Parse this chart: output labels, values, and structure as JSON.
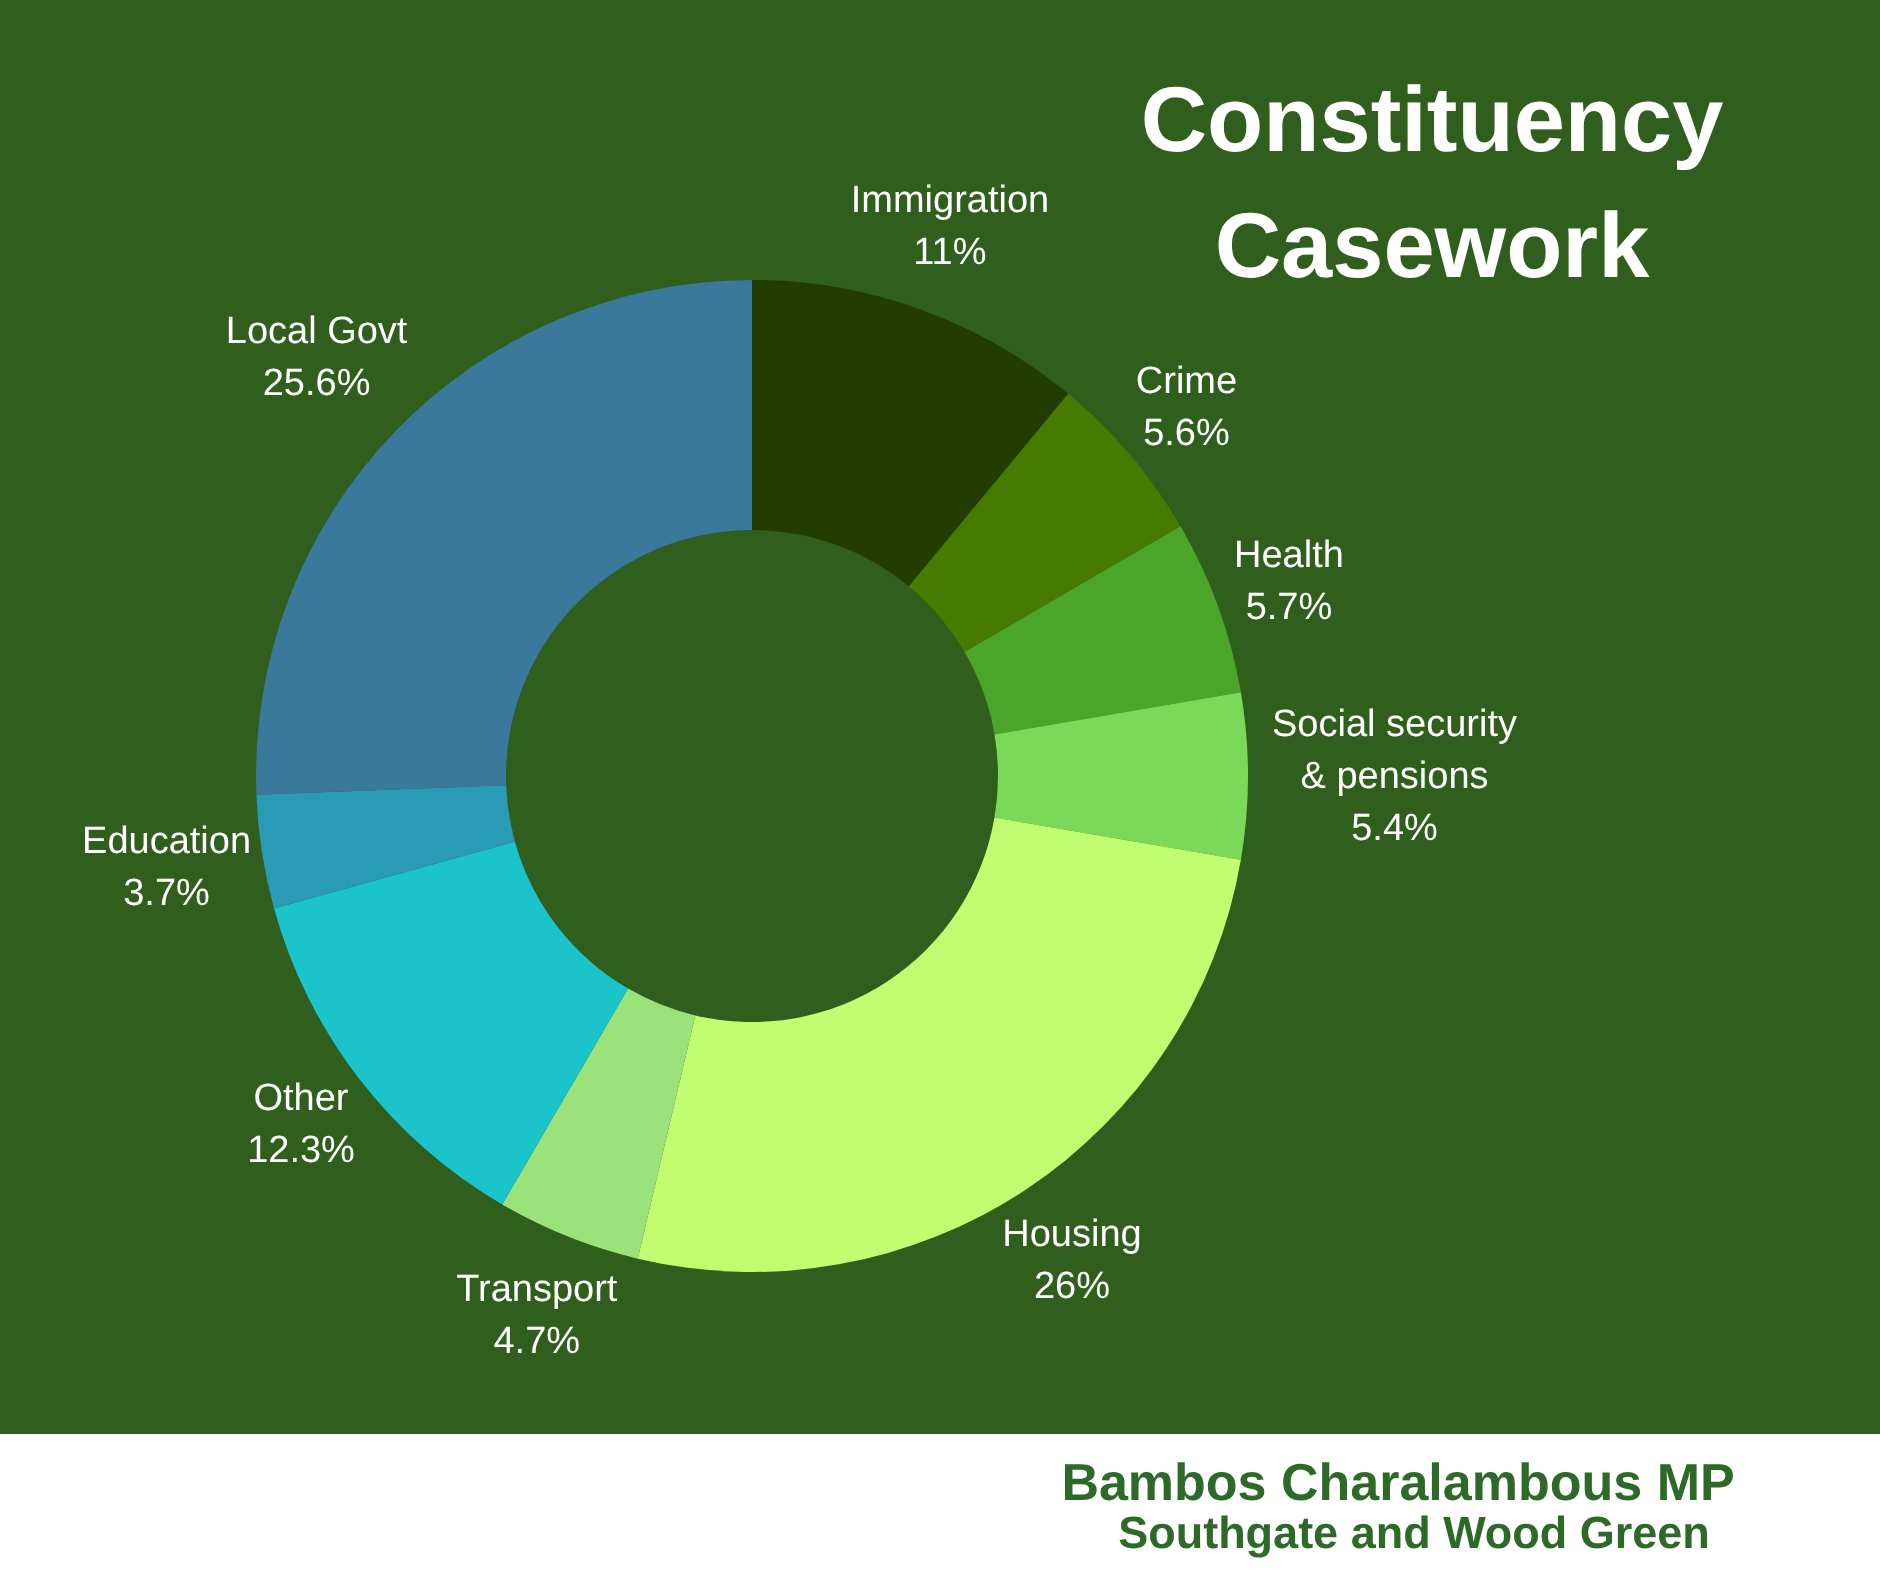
{
  "chart_data": {
    "type": "donut",
    "title": "Constituency Casework",
    "categories": [
      "Immigration",
      "Crime",
      "Health",
      "Social security & pensions",
      "Housing",
      "Transport",
      "Other",
      "Education",
      "Local Govt"
    ],
    "values": [
      11,
      5.6,
      5.7,
      5.4,
      26,
      4.7,
      12.3,
      3.7,
      25.6
    ],
    "colors": [
      "#233d00",
      "#467a00",
      "#4aa52a",
      "#7cd858",
      "#c2fc70",
      "#9be27a",
      "#1bc3cb",
      "#2a9bb7",
      "#3a789c"
    ],
    "value_labels": [
      "11%",
      "5.6%",
      "5.7%",
      "5.4%",
      "26%",
      "4.7%",
      "12.3%",
      "3.7%",
      "25.6%"
    ],
    "annotations": [
      "Bambos Charalambous MP",
      "Southgate and Wood Green"
    ]
  }
}
